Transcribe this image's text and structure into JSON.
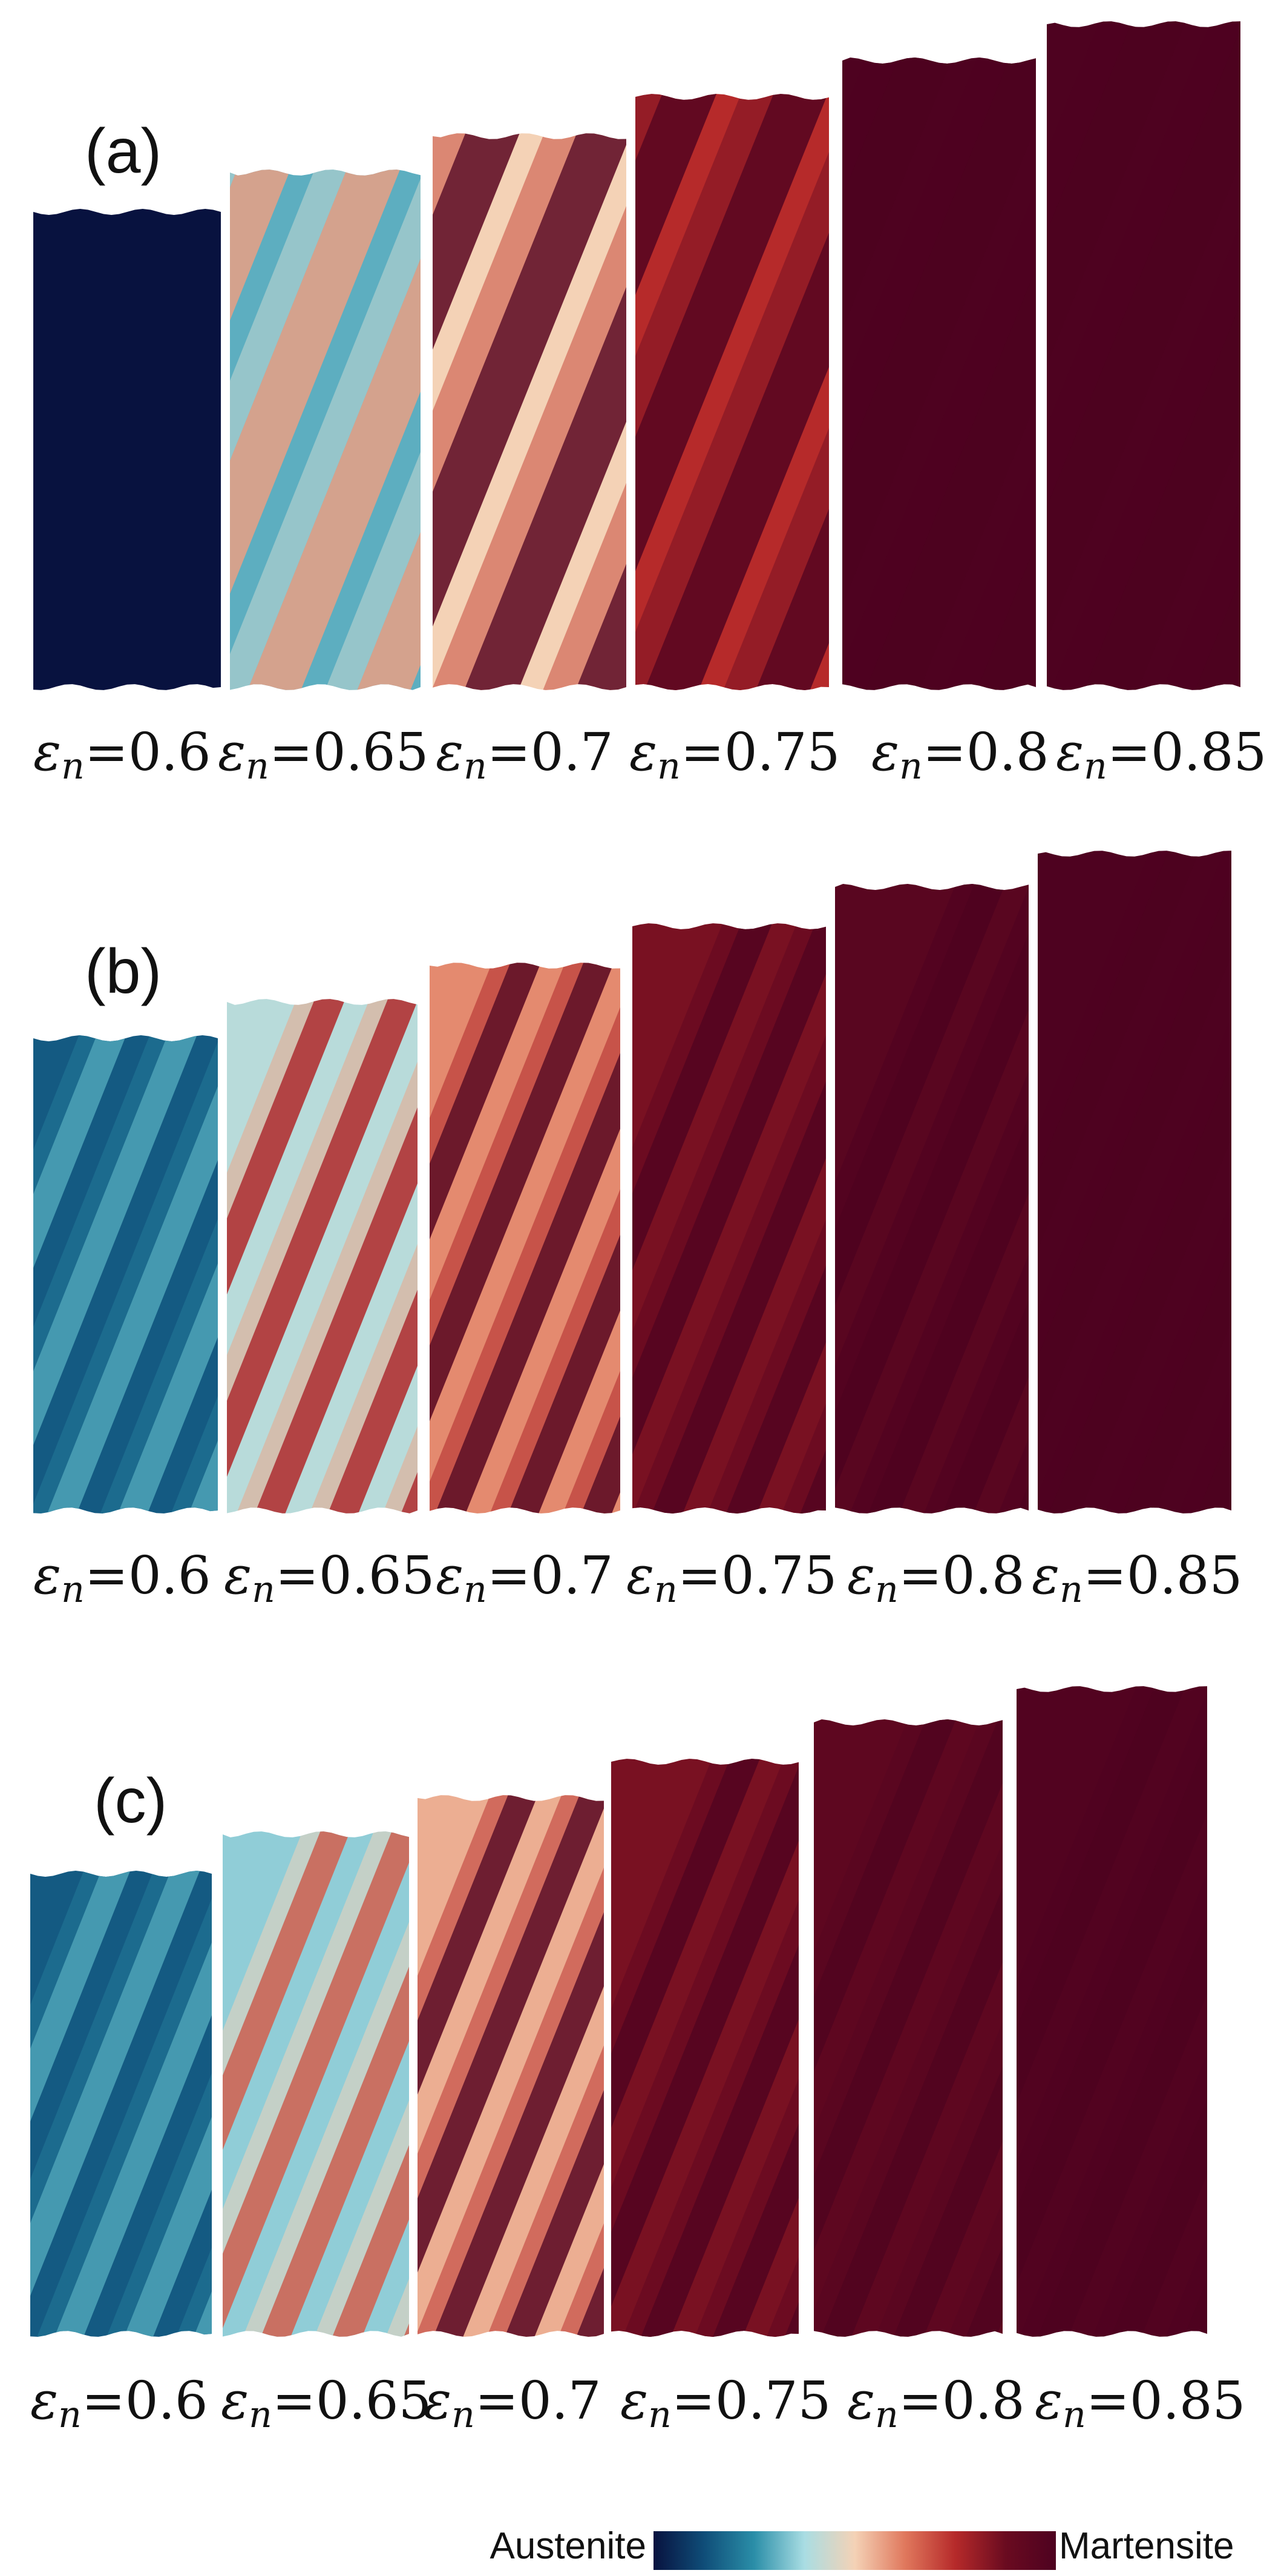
{
  "figure": {
    "panels": [
      {
        "id": "a",
        "label": "(a)",
        "strains": [
          "0.6",
          "0.65",
          "0.7",
          "0.75",
          "0.8",
          "0.85"
        ],
        "martensite_fraction": [
          0.0,
          0.3,
          0.5,
          0.75,
          1.0,
          1.0
        ]
      },
      {
        "id": "b",
        "label": "(b)",
        "strains": [
          "0.6",
          "0.65",
          "0.7",
          "0.75",
          "0.8",
          "0.85"
        ],
        "martensite_fraction": [
          0.15,
          0.4,
          0.6,
          0.85,
          0.95,
          1.0
        ]
      },
      {
        "id": "c",
        "label": "(c)",
        "strains": [
          "0.6",
          "0.65",
          "0.7",
          "0.75",
          "0.8",
          "0.85"
        ],
        "martensite_fraction": [
          0.15,
          0.35,
          0.55,
          0.85,
          0.93,
          0.98
        ]
      }
    ],
    "strain_symbol": "ε",
    "strain_subscript": "n",
    "equals": "=",
    "colorbar": {
      "min_label": "Austenite",
      "max_label": "Martensite",
      "colors": [
        "#08123f",
        "#0f4d78",
        "#2a8ea8",
        "#a9dde3",
        "#f4d2b6",
        "#e0785d",
        "#b62a2a",
        "#6a0b20",
        "#4e0220"
      ]
    }
  }
}
